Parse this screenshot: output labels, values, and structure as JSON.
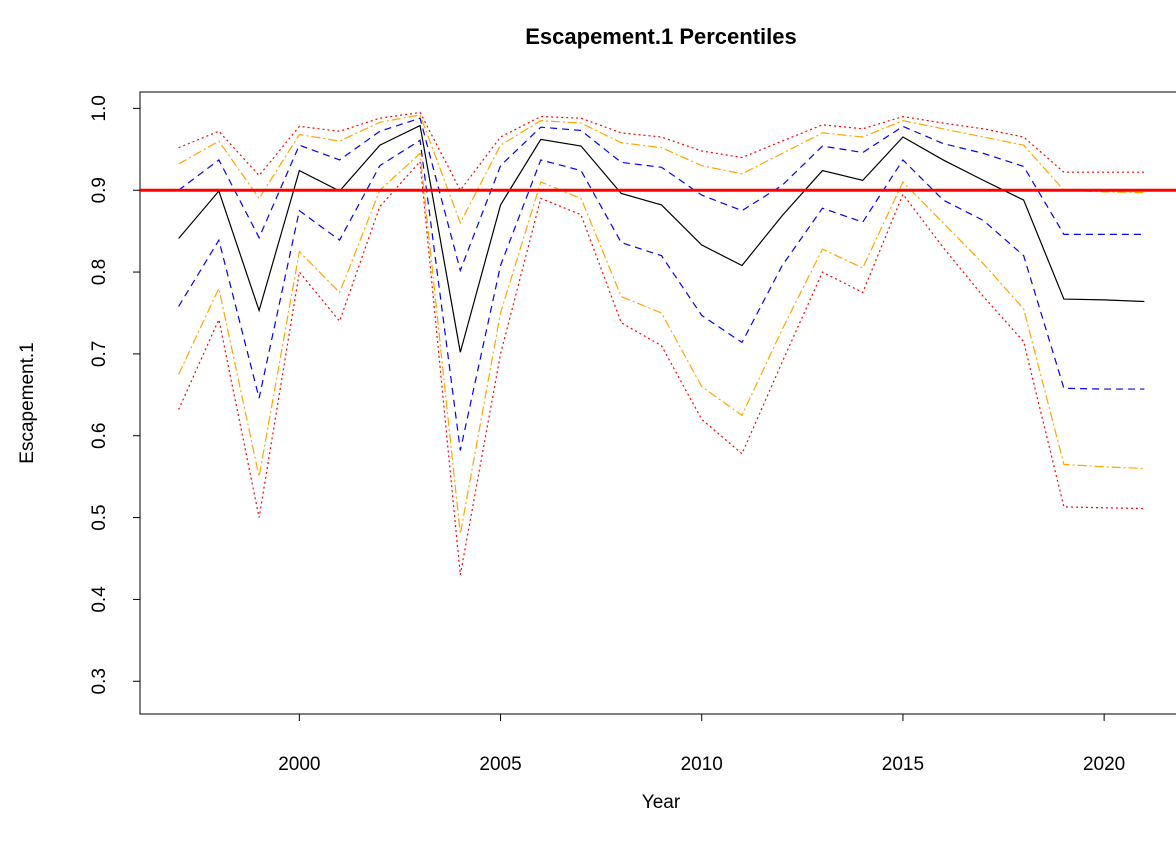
{
  "chart_data": {
    "type": "line",
    "title": "Escapement.1  Percentiles",
    "x_label": "Year",
    "y_label": "Escapement.1",
    "x": [
      1997,
      1998,
      1999,
      2000,
      2001,
      2002,
      2003,
      2004,
      2005,
      2006,
      2007,
      2008,
      2009,
      2010,
      2011,
      2012,
      2013,
      2014,
      2015,
      2016,
      2017,
      2018,
      2019,
      2020,
      2021
    ],
    "series": [
      {
        "color": "#ff0000",
        "dash": "dotted",
        "values": [
          0.632,
          0.742,
          0.5,
          0.8,
          0.74,
          0.88,
          0.935,
          0.43,
          0.7,
          0.89,
          0.87,
          0.738,
          0.71,
          0.62,
          0.578,
          0.69,
          0.8,
          0.775,
          0.895,
          0.83,
          0.77,
          0.715,
          0.513,
          0.512,
          0.511
        ]
      },
      {
        "color": "#ffa500",
        "dash": "dotdash",
        "values": [
          0.675,
          0.78,
          0.55,
          0.825,
          0.775,
          0.9,
          0.945,
          0.48,
          0.75,
          0.91,
          0.89,
          0.77,
          0.75,
          0.66,
          0.625,
          0.73,
          0.828,
          0.805,
          0.91,
          0.86,
          0.81,
          0.755,
          0.565,
          0.562,
          0.56
        ]
      },
      {
        "color": "#0000ff",
        "dash": "dashed",
        "values": [
          0.758,
          0.839,
          0.646,
          0.875,
          0.839,
          0.93,
          0.961,
          0.582,
          0.808,
          0.937,
          0.924,
          0.836,
          0.82,
          0.747,
          0.714,
          0.808,
          0.878,
          0.861,
          0.937,
          0.888,
          0.863,
          0.82,
          0.658,
          0.657,
          0.657
        ]
      },
      {
        "color": "#000000",
        "dash": "solid",
        "values": [
          0.841,
          0.899,
          0.753,
          0.924,
          0.899,
          0.955,
          0.979,
          0.702,
          0.882,
          0.962,
          0.954,
          0.896,
          0.882,
          0.833,
          0.808,
          0.869,
          0.924,
          0.912,
          0.965,
          0.937,
          0.912,
          0.888,
          0.767,
          0.766,
          0.764
        ]
      },
      {
        "color": "#0000ff",
        "dash": "dashed",
        "values": [
          0.9,
          0.937,
          0.842,
          0.955,
          0.937,
          0.972,
          0.988,
          0.802,
          0.93,
          0.977,
          0.973,
          0.934,
          0.928,
          0.894,
          0.875,
          0.906,
          0.954,
          0.946,
          0.978,
          0.957,
          0.945,
          0.929,
          0.846,
          0.846,
          0.846
        ]
      },
      {
        "color": "#ffa500",
        "dash": "dotdash",
        "values": [
          0.932,
          0.96,
          0.89,
          0.968,
          0.96,
          0.983,
          0.992,
          0.86,
          0.955,
          0.985,
          0.982,
          0.958,
          0.952,
          0.93,
          0.92,
          0.945,
          0.97,
          0.965,
          0.985,
          0.975,
          0.965,
          0.955,
          0.9,
          0.898,
          0.897
        ]
      },
      {
        "color": "#ff0000",
        "dash": "dotted",
        "values": [
          0.952,
          0.972,
          0.918,
          0.978,
          0.972,
          0.988,
          0.995,
          0.9,
          0.965,
          0.99,
          0.988,
          0.97,
          0.965,
          0.948,
          0.94,
          0.96,
          0.98,
          0.975,
          0.99,
          0.982,
          0.975,
          0.965,
          0.922,
          0.922,
          0.922
        ]
      }
    ],
    "reference_line": {
      "value": 0.9,
      "color": "#ff0000"
    },
    "xlim": [
      1996.04,
      2021.96
    ],
    "xticks": [
      2000,
      2005,
      2010,
      2015,
      2020
    ],
    "ylim": [
      0.26,
      1.02
    ],
    "yticks": [
      0.3,
      0.4,
      0.5,
      0.6,
      0.7,
      0.8,
      0.9,
      {
        "value": 1.0,
        "label": "1.0"
      }
    ]
  }
}
